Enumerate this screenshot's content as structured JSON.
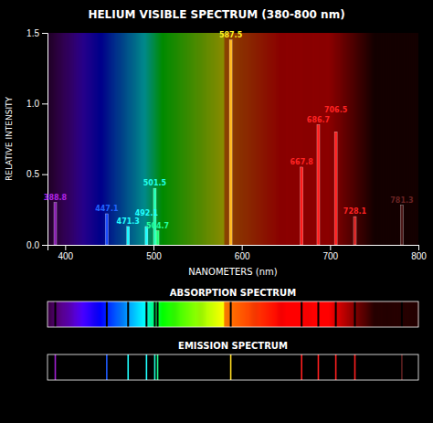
{
  "chart_data": {
    "type": "bar",
    "title": "HELIUM VISIBLE SPECTRUM (380-800 nm)",
    "xlabel": "NANOMETERS (nm)",
    "ylabel": "RELATIVE INTENSITY",
    "x": [
      388.8,
      447.1,
      471.3,
      492.1,
      501.5,
      504.7,
      587.5,
      667.8,
      686.7,
      706.5,
      728.1,
      781.3
    ],
    "values": [
      0.3,
      0.22,
      0.13,
      0.13,
      0.4,
      0.1,
      1.45,
      0.55,
      0.85,
      0.8,
      0.2,
      0.28
    ],
    "colors": [
      "#851aae",
      "#1a4cff",
      "#1af9ff",
      "#1affff",
      "#1affb1",
      "#1aff78",
      "#ffb71a",
      "#ff1a1a",
      "#ff1a1a",
      "#ff1a1a",
      "#d41a1a",
      "#4f1a1a"
    ],
    "xlim": [
      380,
      800
    ],
    "xticks": [
      400,
      500,
      600,
      700,
      800
    ],
    "ylim": [
      0.0,
      1.5
    ],
    "yticks": [
      {
        "value": 0.0,
        "label": "0.0"
      },
      0.5,
      {
        "value": 1.0,
        "label": "1.0"
      },
      1.5
    ],
    "annotations": [
      "ABSORPTION SPECTRUM",
      "EMISSION SPECTRUM"
    ]
  }
}
